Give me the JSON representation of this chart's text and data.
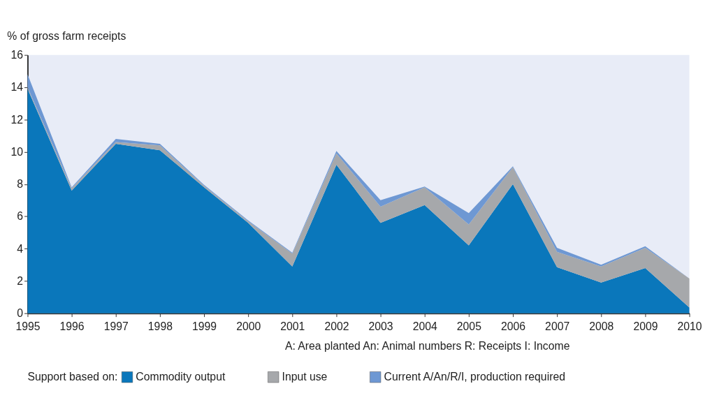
{
  "chart_data": {
    "type": "area",
    "stacked": true,
    "ylabel": "% of gross farm receipts",
    "legend_title": "Support based on:",
    "x": [
      1995,
      1996,
      1997,
      1998,
      1999,
      2000,
      2001,
      2002,
      2003,
      2004,
      2005,
      2006,
      2007,
      2008,
      2009,
      2010
    ],
    "series": [
      {
        "name": "Commodity output",
        "color": "#0a77bb",
        "values": [
          13.9,
          7.6,
          10.5,
          10.1,
          7.8,
          5.6,
          2.9,
          9.2,
          5.6,
          6.7,
          4.2,
          8.0,
          2.85,
          1.9,
          2.8,
          0.35
        ]
      },
      {
        "name": "Input use",
        "color": "#a6a8ab",
        "values": [
          0.1,
          0.15,
          0.1,
          0.3,
          0.1,
          0.1,
          0.8,
          0.7,
          1.0,
          1.1,
          1.3,
          1.05,
          0.95,
          1.0,
          1.25,
          1.8
        ]
      },
      {
        "name": "Current A/An/R/I, production required",
        "color": "#6e98d3",
        "values": [
          0.8,
          0.05,
          0.2,
          0.1,
          0.05,
          0.05,
          0.05,
          0.15,
          0.4,
          0.05,
          0.7,
          0.05,
          0.25,
          0.1,
          0.1,
          0.0
        ]
      }
    ],
    "xlim": [
      1995,
      2010
    ],
    "xticks": [
      1995,
      1996,
      1997,
      1998,
      1999,
      2000,
      2001,
      2002,
      2003,
      2004,
      2005,
      2006,
      2007,
      2008,
      2009,
      2010
    ],
    "ylim": [
      0,
      16
    ],
    "yticks": [
      0,
      2,
      4,
      6,
      8,
      10,
      12,
      14,
      16
    ],
    "grid": false,
    "legend": "bottom",
    "annotations": [
      "A: Area planted    An: Animal numbers    R: Receipts    I: Income"
    ]
  }
}
